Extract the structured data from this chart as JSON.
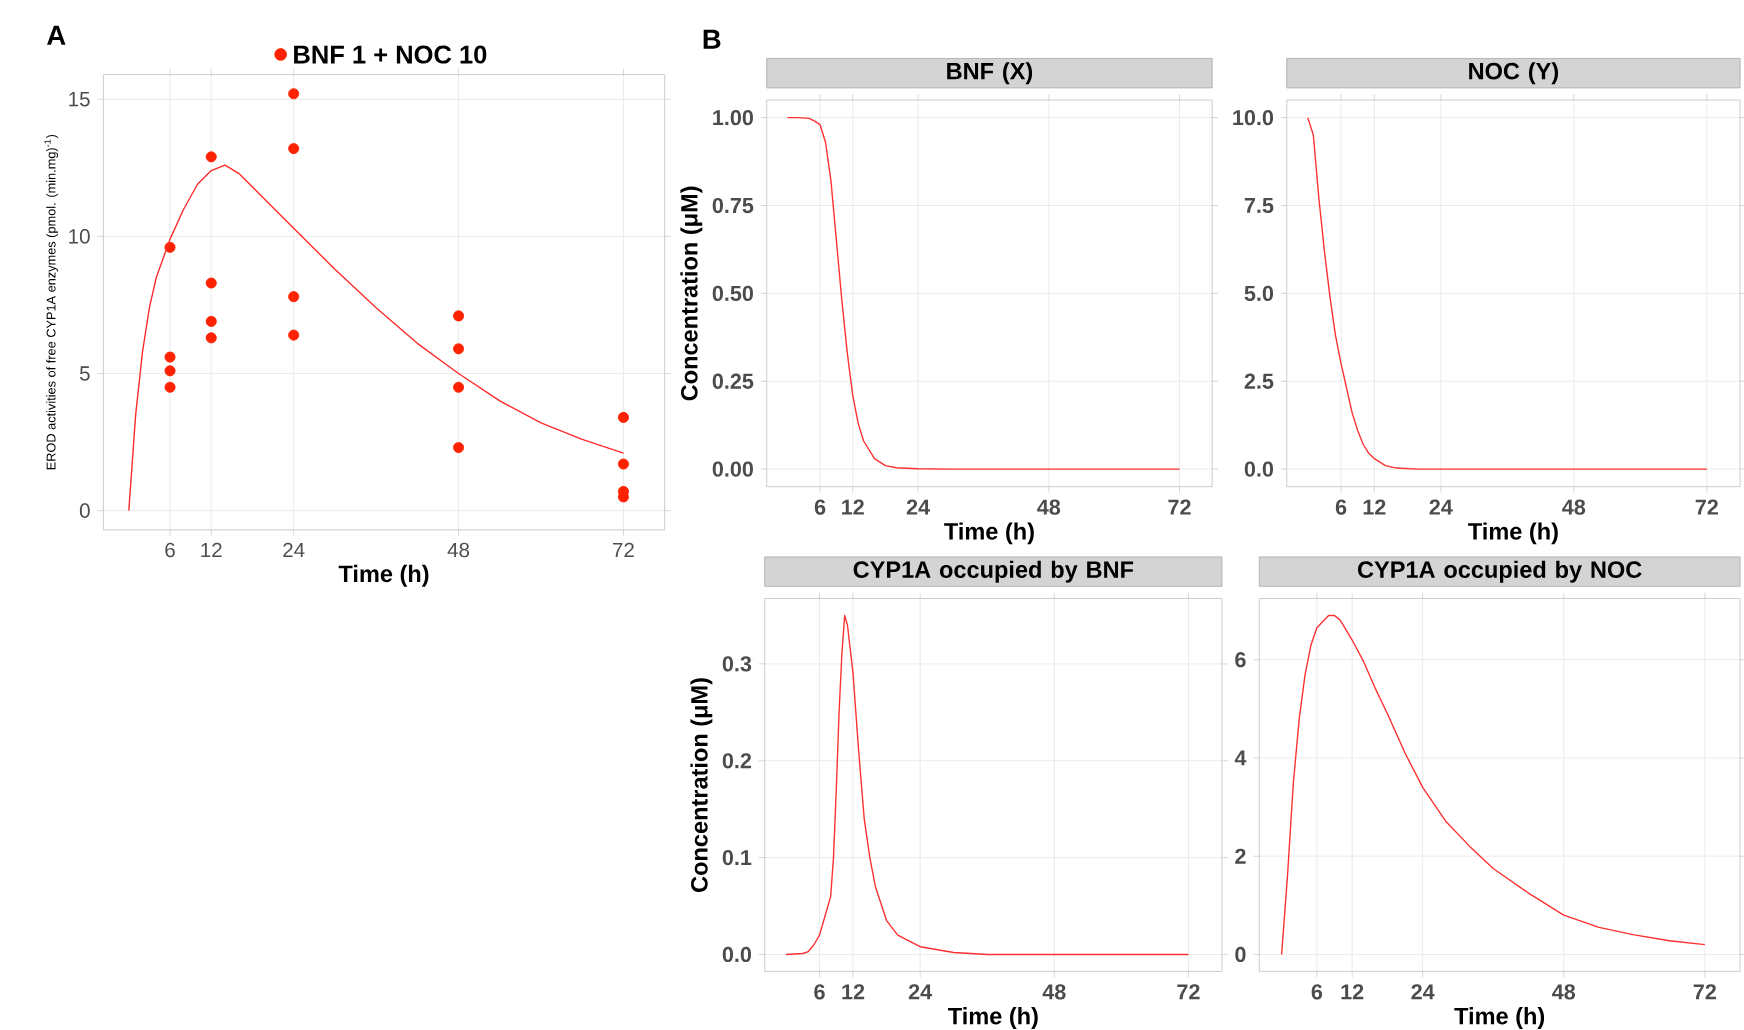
{
  "chart_data": [
    {
      "type": "scatter",
      "annotations": [
        "A"
      ],
      "xlabel": "Time (h)",
      "ylabel": "EROD activities of free CYP1A enzymes (pmol. (min.mg)$^{-1}$)",
      "xlim": [
        -3.7,
        78
      ],
      "ylim": [
        -0.7,
        15.9
      ],
      "xticks": [
        6,
        12,
        24,
        48,
        72
      ],
      "yticks": [
        0,
        5,
        10,
        15
      ],
      "grid": true,
      "legend": "top",
      "line_style": "solid",
      "series": [
        {
          "name": "BNF 1 + NOC 10",
          "type": "scatter",
          "marker": "circle",
          "color": "#ff2200",
          "x": [
            6,
            6,
            6,
            6,
            12,
            12,
            12,
            12,
            24,
            24,
            24,
            24,
            48,
            48,
            48,
            48,
            72,
            72,
            72,
            72
          ],
          "values": [
            9.6,
            5.6,
            5.1,
            4.5,
            12.9,
            8.3,
            6.9,
            6.3,
            15.2,
            13.2,
            7.8,
            6.4,
            7.1,
            5.9,
            4.5,
            2.3,
            3.4,
            1.7,
            0.7,
            0.5
          ]
        },
        {
          "type": "line",
          "color": "#ff2a2a",
          "x": [
            0,
            1,
            2,
            3,
            4,
            6,
            8,
            10,
            12,
            14,
            16,
            20,
            24,
            30,
            36,
            42,
            48,
            54,
            60,
            66,
            72
          ],
          "values": [
            0,
            3.5,
            5.8,
            7.4,
            8.5,
            9.9,
            11.0,
            11.9,
            12.4,
            12.6,
            12.3,
            11.3,
            10.3,
            8.8,
            7.4,
            6.1,
            5.0,
            4.0,
            3.2,
            2.6,
            2.1
          ]
        }
      ]
    },
    {
      "type": "line",
      "title": "BNF (X)",
      "annotations": [
        "B"
      ],
      "xlabel": "Time (h)",
      "ylabel": "Concentration (μM)",
      "xlim": [
        -3.8,
        78
      ],
      "ylim": [
        -0.05,
        1.05
      ],
      "xticks": [
        6,
        12,
        24,
        48,
        72
      ],
      "yticks": [
        {
          "value": 0,
          "label": "0.00"
        },
        {
          "value": 0.25,
          "label": "0.25"
        },
        {
          "value": 0.5,
          "label": "0.50"
        },
        {
          "value": 0.75,
          "label": "0.75"
        },
        {
          "value": 1,
          "label": "1.00"
        }
      ],
      "grid": true,
      "line_style": "solid",
      "series": [
        {
          "color": "#ff3030",
          "x": [
            0,
            2,
            4,
            5,
            6,
            7,
            8,
            9,
            10,
            11,
            12,
            13,
            14,
            16,
            18,
            20,
            24,
            30,
            48,
            72
          ],
          "values": [
            1,
            1,
            0.998,
            0.99,
            0.98,
            0.93,
            0.82,
            0.65,
            0.48,
            0.33,
            0.21,
            0.13,
            0.08,
            0.03,
            0.01,
            0.004,
            0.001,
            0,
            0,
            0
          ]
        }
      ]
    },
    {
      "type": "line",
      "title": "NOC (Y)",
      "xlabel": "Time (h)",
      "xlim": [
        -3.8,
        78
      ],
      "ylim": [
        -0.5,
        10.5
      ],
      "xticks": [
        6,
        12,
        24,
        48,
        72
      ],
      "yticks": [
        {
          "value": 0,
          "label": "0.0"
        },
        {
          "value": 2.5,
          "label": "2.5"
        },
        {
          "value": 5,
          "label": "5.0"
        },
        {
          "value": 7.5,
          "label": "7.5"
        },
        {
          "value": 10,
          "label": "10.0"
        }
      ],
      "grid": true,
      "line_style": "solid",
      "series": [
        {
          "color": "#ff3030",
          "x": [
            0,
            1,
            2,
            3,
            4,
            5,
            6,
            7,
            8,
            9,
            10,
            11,
            12,
            14,
            16,
            20,
            24,
            72
          ],
          "values": [
            10,
            9.5,
            7.7,
            6.2,
            4.9,
            3.8,
            3.0,
            2.3,
            1.6,
            1.1,
            0.7,
            0.45,
            0.3,
            0.1,
            0.03,
            0,
            0,
            0
          ]
        }
      ]
    },
    {
      "type": "line",
      "title": "CYP1A occupied by BNF",
      "xlabel": "Time (h)",
      "ylabel": "Concentration (μM)",
      "xlim": [
        -3.8,
        78
      ],
      "ylim": [
        -0.0175,
        0.3675
      ],
      "xticks": [
        6,
        12,
        24,
        48,
        72
      ],
      "yticks": [
        {
          "value": 0,
          "label": "0.0"
        },
        {
          "value": 0.1,
          "label": "0.1"
        },
        {
          "value": 0.2,
          "label": "0.2"
        },
        {
          "value": 0.3,
          "label": "0.3"
        }
      ],
      "grid": true,
      "line_style": "solid",
      "series": [
        {
          "color": "#ff3030",
          "x": [
            0,
            3,
            4,
            5,
            6,
            7,
            8,
            8.5,
            9,
            9.5,
            10,
            10.5,
            11,
            12,
            13,
            14,
            15,
            16,
            18,
            20,
            24,
            30,
            36,
            72
          ],
          "values": [
            0,
            0.001,
            0.003,
            0.01,
            0.02,
            0.04,
            0.06,
            0.1,
            0.17,
            0.25,
            0.31,
            0.35,
            0.34,
            0.29,
            0.21,
            0.14,
            0.1,
            0.07,
            0.035,
            0.02,
            0.008,
            0.002,
            0,
            0
          ]
        }
      ]
    },
    {
      "type": "line",
      "title": "CYP1A occupied by NOC",
      "xlabel": "Time (h)",
      "xlim": [
        -3.8,
        78
      ],
      "ylim": [
        -0.345,
        7.245
      ],
      "xticks": [
        6,
        12,
        24,
        48,
        72
      ],
      "yticks": [
        0,
        2,
        4,
        6
      ],
      "grid": true,
      "line_style": "solid",
      "series": [
        {
          "color": "#ff3030",
          "x": [
            0,
            1,
            2,
            3,
            4,
            5,
            6,
            8,
            9,
            10,
            12,
            14,
            16,
            18,
            21,
            24,
            28,
            32,
            36,
            42,
            48,
            54,
            60,
            66,
            72
          ],
          "values": [
            0,
            1.6,
            3.5,
            4.8,
            5.7,
            6.3,
            6.65,
            6.9,
            6.9,
            6.8,
            6.4,
            5.95,
            5.4,
            4.9,
            4.1,
            3.4,
            2.7,
            2.2,
            1.75,
            1.25,
            0.8,
            0.55,
            0.4,
            0.28,
            0.2
          ]
        }
      ]
    }
  ]
}
